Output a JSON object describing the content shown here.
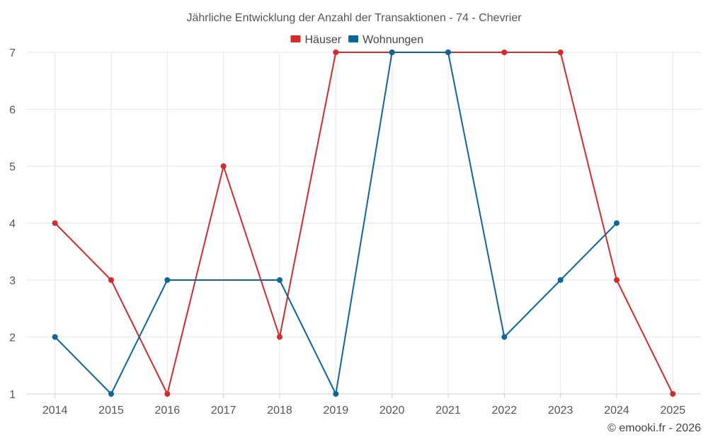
{
  "chart_data": {
    "type": "line",
    "title": "Jährliche Entwicklung der Anzahl der Transaktionen - 74 - Chevrier",
    "xlabel": "",
    "ylabel": "",
    "categories": [
      "2014",
      "2015",
      "2016",
      "2017",
      "2018",
      "2019",
      "2020",
      "2021",
      "2022",
      "2023",
      "2024",
      "2025"
    ],
    "ylim": [
      1,
      7
    ],
    "yticks": [
      "1",
      "2",
      "3",
      "4",
      "5",
      "6",
      "7"
    ],
    "grid": true,
    "legend": "top-center",
    "series": [
      {
        "name": "Häuser",
        "color": "#d42a2a",
        "values": [
          4,
          3,
          1,
          5,
          2,
          7,
          7,
          7,
          7,
          7,
          3,
          1
        ]
      },
      {
        "name": "Wohnungen",
        "color": "#0d6699",
        "values": [
          2,
          1,
          3,
          null,
          3,
          1,
          7,
          7,
          2,
          3,
          4,
          null
        ]
      }
    ]
  },
  "credit": "© emooki.fr - 2026"
}
